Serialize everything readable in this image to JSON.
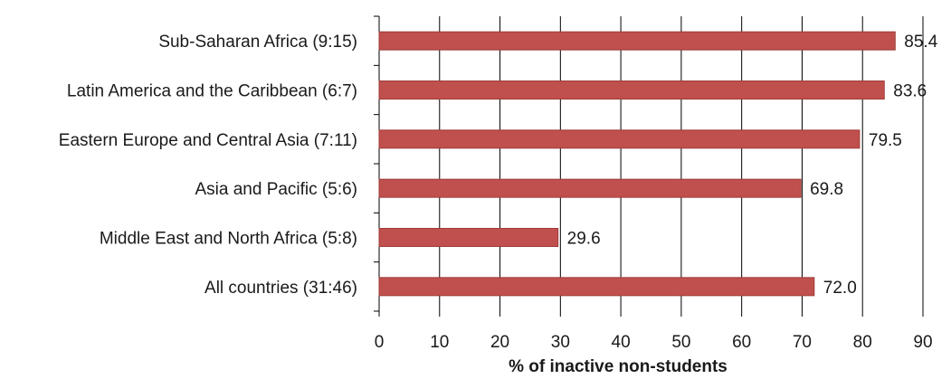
{
  "chart_data": {
    "type": "bar",
    "orientation": "horizontal",
    "categories": [
      "Sub-Saharan Africa (9:15)",
      "Latin America and the Caribbean (6:7)",
      "Eastern Europe and Central Asia (7:11)",
      "Asia and Pacific (5:6)",
      "Middle East and North Africa (5:8)",
      "All countries (31:46)"
    ],
    "values": [
      85.4,
      83.6,
      79.5,
      69.8,
      29.6,
      72.0
    ],
    "value_labels": [
      "85.4",
      "83.6",
      "79.5",
      "69.8",
      "29.6",
      "72.0"
    ],
    "xlabel": "% of inactive non-students",
    "ylabel": "",
    "xlim": [
      0,
      90
    ],
    "xticks": [
      "0",
      "10",
      "20",
      "30",
      "40",
      "50",
      "60",
      "70",
      "80",
      "90"
    ],
    "grid": "vertical",
    "legend": "none",
    "bar_color": "#c0504d",
    "bar_edge_color": "#9e3b39"
  }
}
